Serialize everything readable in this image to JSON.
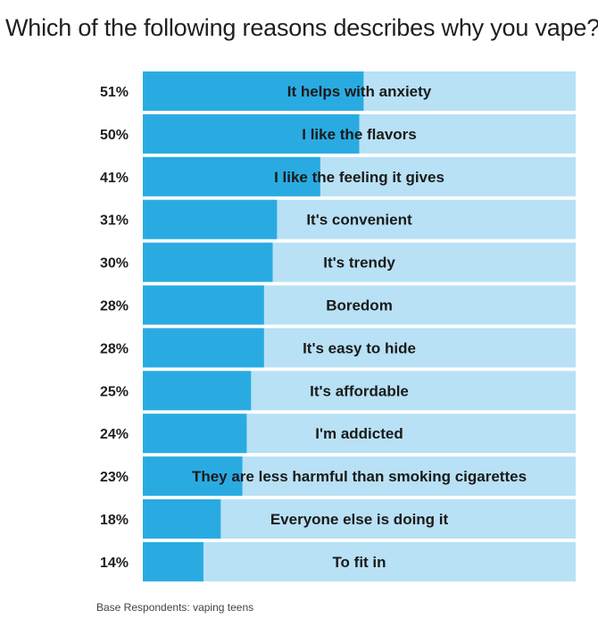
{
  "title": "Which of the following reasons describes why you vape?",
  "footnote": "Base Respondents: vaping teens",
  "colors": {
    "bar_fill": "#29abe2",
    "bar_track": "#b8e1f5",
    "text": "#1a1a1a"
  },
  "chart_data": {
    "type": "bar",
    "orientation": "horizontal",
    "title": "Which of the following reasons describes why you vape?",
    "xlim": [
      0,
      100
    ],
    "categories": [
      "It helps with anxiety",
      "I like the flavors",
      "I like the feeling it gives",
      "It's convenient",
      "It's trendy",
      "Boredom",
      "It's easy to hide",
      "It's affordable",
      "I'm addicted",
      "They are less harmful than smoking cigarettes",
      "Everyone else is doing it",
      "To fit in"
    ],
    "values": [
      51,
      50,
      41,
      31,
      30,
      28,
      28,
      25,
      24,
      23,
      18,
      14
    ],
    "value_labels": [
      "51%",
      "50%",
      "41%",
      "31%",
      "30%",
      "28%",
      "28%",
      "25%",
      "24%",
      "23%",
      "18%",
      "14%"
    ]
  }
}
